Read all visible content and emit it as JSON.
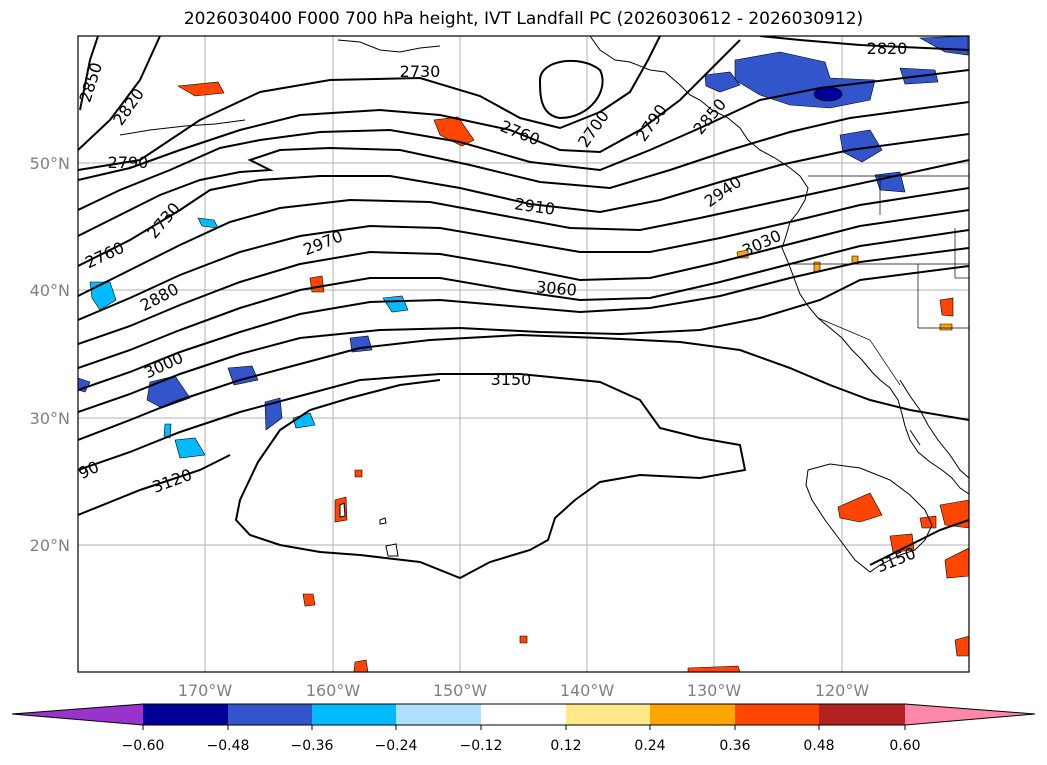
{
  "title": "2026030400 F000 700 hPa height, IVT Landfall PC (2026030612 - 2026030912)",
  "latitude_labels": [
    "50°N",
    "40°N",
    "30°N",
    "20°N"
  ],
  "longitude_labels": [
    "170°W",
    "160°W",
    "150°W",
    "140°W",
    "130°W",
    "120°W"
  ],
  "contour_labels": [
    "2850",
    "2820",
    "2790",
    "2760",
    "2730",
    "2880",
    "3000",
    "2970",
    "2910",
    "2760",
    "2700",
    "2790",
    "2850",
    "2940",
    "3030",
    "3060",
    "3150",
    "3120",
    "90",
    "2820",
    "3150",
    "2730"
  ],
  "colorbar": {
    "ticks": [
      "−0.60",
      "−0.48",
      "−0.36",
      "−0.24",
      "−0.12",
      "0.12",
      "0.24",
      "0.36",
      "0.48",
      "0.60"
    ],
    "colors": [
      "#9933cc",
      "#000099",
      "#3355cc",
      "#00bbff",
      "#b0e0ff",
      "#ffffff",
      "#ffe88a",
      "#ffa500",
      "#ff4500",
      "#b22222",
      "#ff88aa"
    ]
  }
}
